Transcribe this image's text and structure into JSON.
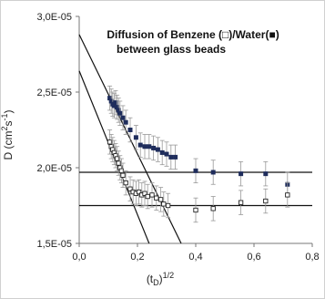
{
  "chart_data": {
    "type": "scatter",
    "title_line1": "Diffusion of Benzene (□)/Water(■)",
    "title_line2": "between glass beads",
    "xlabel_main": "(t",
    "xlabel_sub": "D",
    "xlabel_end": ")",
    "xlabel_sup": "1/2",
    "ylabel_main": "D (cm",
    "ylabel_sup1": "2",
    "ylabel_mid": "s",
    "ylabel_sup2": "-1",
    "ylabel_end": ")",
    "xlim": [
      0,
      0.8
    ],
    "ylim": [
      1.5e-05,
      3e-05
    ],
    "x_ticks": [
      0,
      0.2,
      0.4,
      0.6,
      0.8
    ],
    "x_tick_labels": [
      "0,0",
      "0,2",
      "0,4",
      "0,6",
      "0,8"
    ],
    "y_ticks": [
      1.5e-05,
      2e-05,
      2.5e-05,
      3e-05
    ],
    "y_tick_labels": [
      "1,5E-05",
      "2,0E-05",
      "2,5E-05",
      "3,0E-05"
    ],
    "grid": false,
    "series": [
      {
        "marker": "filled-square",
        "color": "#1f2d5c",
        "error": 8e-07,
        "x": [
          0.105,
          0.11,
          0.115,
          0.12,
          0.125,
          0.13,
          0.135,
          0.14,
          0.15,
          0.16,
          0.175,
          0.195,
          0.21,
          0.225,
          0.24,
          0.255,
          0.27,
          0.285,
          0.3,
          0.315,
          0.33,
          0.4,
          0.46,
          0.555,
          0.64,
          0.715
        ],
        "y": [
          2.46e-05,
          2.44e-05,
          2.42e-05,
          2.41e-05,
          2.43e-05,
          2.4e-05,
          2.38e-05,
          2.36e-05,
          2.33e-05,
          2.3e-05,
          2.25e-05,
          2.2e-05,
          2.15e-05,
          2.14e-05,
          2.14e-05,
          2.13e-05,
          2.12e-05,
          2.1e-05,
          2.09e-05,
          2.07e-05,
          2.07e-05,
          1.98e-05,
          1.97e-05,
          1.96e-05,
          1.96e-05,
          1.89e-05
        ]
      },
      {
        "marker": "open-square",
        "color": "#222222",
        "error": 8e-07,
        "x": [
          0.105,
          0.11,
          0.115,
          0.12,
          0.125,
          0.13,
          0.135,
          0.14,
          0.145,
          0.15,
          0.16,
          0.175,
          0.185,
          0.195,
          0.205,
          0.215,
          0.225,
          0.235,
          0.25,
          0.265,
          0.28,
          0.29,
          0.305,
          0.4,
          0.46,
          0.555,
          0.64,
          0.715
        ],
        "y": [
          2.17e-05,
          2.14e-05,
          2.12e-05,
          2.1e-05,
          2.08e-05,
          2.06e-05,
          2.03e-05,
          2e-05,
          1.98e-05,
          1.95e-05,
          1.9e-05,
          1.86e-05,
          1.84e-05,
          1.83e-05,
          1.84e-05,
          1.82e-05,
          1.83e-05,
          1.81e-05,
          1.82e-05,
          1.8e-05,
          1.79e-05,
          1.76e-05,
          1.75e-05,
          1.72e-05,
          1.73e-05,
          1.77e-05,
          1.78e-05,
          1.82e-05
        ]
      }
    ],
    "fit_lines": [
      {
        "x": [
          0,
          0.35
        ],
        "y": [
          2.88e-05,
          1.5e-05
        ]
      },
      {
        "x": [
          0,
          0.24
        ],
        "y": [
          2.64e-05,
          1.5e-05
        ]
      },
      {
        "x": [
          0,
          0.8
        ],
        "y": [
          1.97e-05,
          1.97e-05
        ]
      },
      {
        "x": [
          0,
          0.8
        ],
        "y": [
          1.75e-05,
          1.75e-05
        ]
      }
    ]
  }
}
